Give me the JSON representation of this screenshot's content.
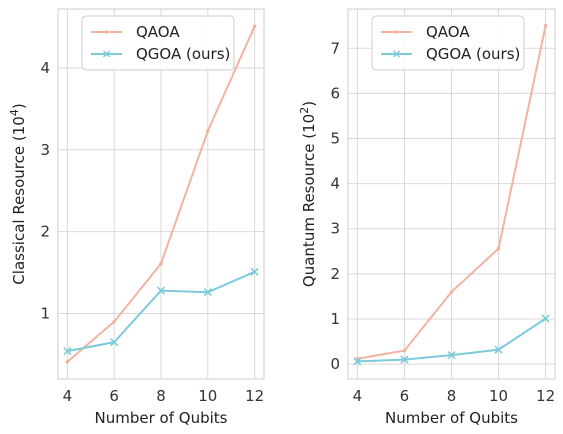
{
  "colors": {
    "qaoa": "#f2b3a1",
    "qgoa": "#7ccadb",
    "grid": "#d9d9d9",
    "frame": "#cccccc"
  },
  "chart_data": [
    {
      "type": "line",
      "x": [
        4,
        6,
        8,
        10,
        12
      ],
      "xticks": [
        "4",
        "6",
        "8",
        "10",
        "12"
      ],
      "yticks": [
        "1",
        "2",
        "3",
        "4"
      ],
      "ytick_values": [
        1,
        2,
        3,
        4
      ],
      "xlabel": "Number of Qubits",
      "ylabel_prefix": "Classical Resource  (10",
      "ylabel_exp": "4",
      "ylabel_suffix": ")",
      "xlim": [
        3.6,
        12.4
      ],
      "ylim": [
        0.2,
        4.72
      ],
      "grid": true,
      "legend": "top-center",
      "series": [
        {
          "name": "QAOA",
          "values": [
            0.41,
            0.9,
            1.61,
            3.23,
            4.51
          ],
          "marker": "dot"
        },
        {
          "name": "QGOA (ours)",
          "values": [
            0.54,
            0.65,
            1.28,
            1.26,
            1.51
          ],
          "marker": "x"
        }
      ]
    },
    {
      "type": "line",
      "x": [
        4,
        6,
        8,
        10,
        12
      ],
      "xticks": [
        "4",
        "6",
        "8",
        "10",
        "12"
      ],
      "yticks": [
        "0",
        "1",
        "2",
        "3",
        "4",
        "5",
        "6",
        "7"
      ],
      "ytick_values": [
        0,
        1,
        2,
        3,
        4,
        5,
        6,
        7
      ],
      "xlabel": "Number of Qubits",
      "ylabel_prefix": "Quantum Resource  (10",
      "ylabel_exp": "2",
      "ylabel_suffix": ")",
      "xlim": [
        3.6,
        12.4
      ],
      "ylim": [
        -0.33,
        7.87
      ],
      "grid": true,
      "legend": "top-center",
      "series": [
        {
          "name": "QAOA",
          "values": [
            0.12,
            0.3,
            1.6,
            2.56,
            7.5
          ],
          "marker": "dot"
        },
        {
          "name": "QGOA (ours)",
          "values": [
            0.06,
            0.1,
            0.2,
            0.32,
            1.01
          ],
          "marker": "x"
        }
      ]
    }
  ]
}
